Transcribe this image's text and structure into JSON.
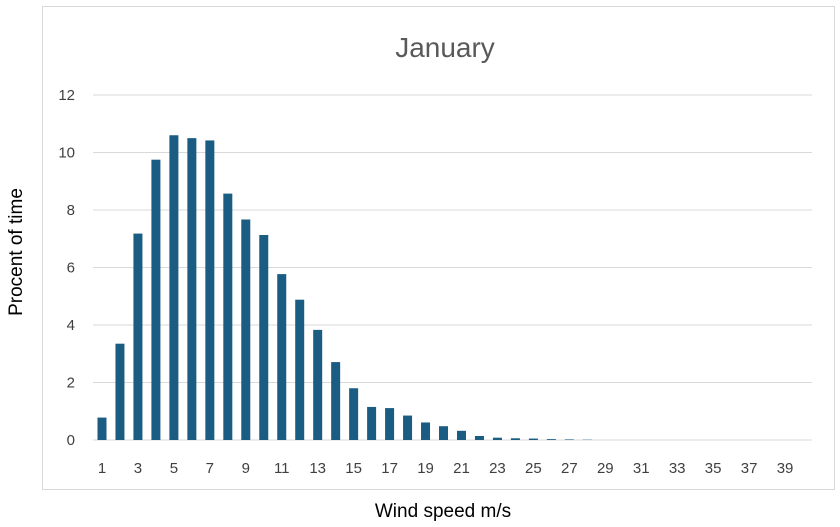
{
  "chart_data": {
    "type": "bar",
    "title": "January",
    "xlabel": "Wind speed m/s",
    "ylabel": "Procent of time",
    "ylim": [
      0,
      12
    ],
    "yticks": [
      0,
      2,
      4,
      6,
      8,
      10,
      12
    ],
    "categories": [
      "1",
      "2",
      "3",
      "4",
      "5",
      "6",
      "7",
      "8",
      "9",
      "10",
      "11",
      "12",
      "13",
      "14",
      "15",
      "16",
      "17",
      "18",
      "19",
      "20",
      "21",
      "22",
      "23",
      "24",
      "25",
      "26",
      "27",
      "28",
      "29",
      "30",
      "31",
      "32",
      "33",
      "34",
      "35",
      "36",
      "37",
      "38",
      "39",
      "40"
    ],
    "xtick_labels": [
      "1",
      "3",
      "5",
      "7",
      "9",
      "11",
      "13",
      "15",
      "17",
      "19",
      "21",
      "23",
      "25",
      "27",
      "29",
      "31",
      "33",
      "35",
      "37",
      "39"
    ],
    "values": [
      0.78,
      3.35,
      7.18,
      9.75,
      10.6,
      10.5,
      10.42,
      8.57,
      7.67,
      7.13,
      5.77,
      4.88,
      3.83,
      2.71,
      1.8,
      1.15,
      1.11,
      0.85,
      0.61,
      0.48,
      0.32,
      0.14,
      0.08,
      0.06,
      0.05,
      0.03,
      0.02,
      0.01,
      0.0,
      0.0,
      0.0,
      0.0,
      0.0,
      0.0,
      0.0,
      0.0,
      0.0,
      0.0,
      0.0,
      0.0
    ],
    "bar_color": "#1a5c82",
    "grid": true,
    "legend": "none"
  }
}
